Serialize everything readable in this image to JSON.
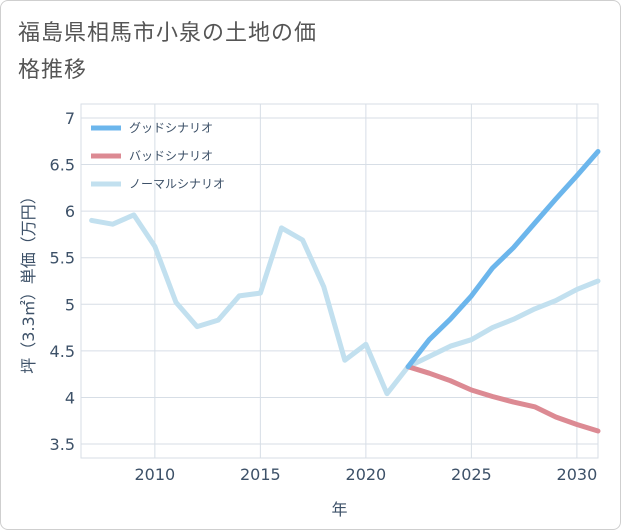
{
  "title": "福島県相馬市小泉の土地の価格推移",
  "chart_data": {
    "type": "line",
    "xlabel": "年",
    "ylabel": "坪（3.3㎡）単価（万円）",
    "xlim": [
      2006.5,
      2031
    ],
    "ylim": [
      3.35,
      7.15
    ],
    "x_ticks": [
      2010,
      2015,
      2020,
      2025,
      2030
    ],
    "y_ticks": [
      3.5,
      4,
      4.5,
      5,
      5.5,
      6,
      6.5,
      7
    ],
    "x_tick_labels": [
      "2010",
      "2015",
      "2020",
      "2025",
      "2030"
    ],
    "y_tick_labels": [
      "3.5",
      "4",
      "4.5",
      "5",
      "5.5",
      "6",
      "6.5",
      "7"
    ],
    "legend": [
      "グッドシナリオ",
      "バッドシナリオ",
      "ノーマルシナリオ"
    ],
    "series": [
      {
        "name": "グッドシナリオ",
        "color": "#6cb6ec",
        "x": [
          2022,
          2023,
          2024,
          2025,
          2026,
          2027,
          2028,
          2029,
          2030,
          2031
        ],
        "y": [
          4.33,
          4.62,
          4.84,
          5.09,
          5.39,
          5.61,
          5.87,
          6.13,
          6.38,
          6.64
        ]
      },
      {
        "name": "バッドシナリオ",
        "color": "#dc8a93",
        "x": [
          2022,
          2023,
          2024,
          2025,
          2026,
          2027,
          2028,
          2029,
          2030,
          2031
        ],
        "y": [
          4.33,
          4.26,
          4.18,
          4.08,
          4.01,
          3.95,
          3.9,
          3.79,
          3.71,
          3.64
        ]
      },
      {
        "name": "ノーマルシナリオ",
        "color": "#c2e0ef",
        "x": [
          2007,
          2008,
          2009,
          2010,
          2011,
          2012,
          2013,
          2014,
          2015,
          2016,
          2017,
          2018,
          2019,
          2020,
          2021,
          2022,
          2023,
          2024,
          2025,
          2026,
          2027,
          2028,
          2029,
          2030,
          2031
        ],
        "y": [
          5.9,
          5.86,
          5.96,
          5.62,
          5.02,
          4.76,
          4.83,
          5.09,
          5.12,
          5.82,
          5.69,
          5.19,
          4.4,
          4.57,
          4.04,
          4.33,
          4.44,
          4.55,
          4.62,
          4.75,
          4.84,
          4.95,
          5.04,
          5.16,
          5.25
        ]
      }
    ]
  }
}
